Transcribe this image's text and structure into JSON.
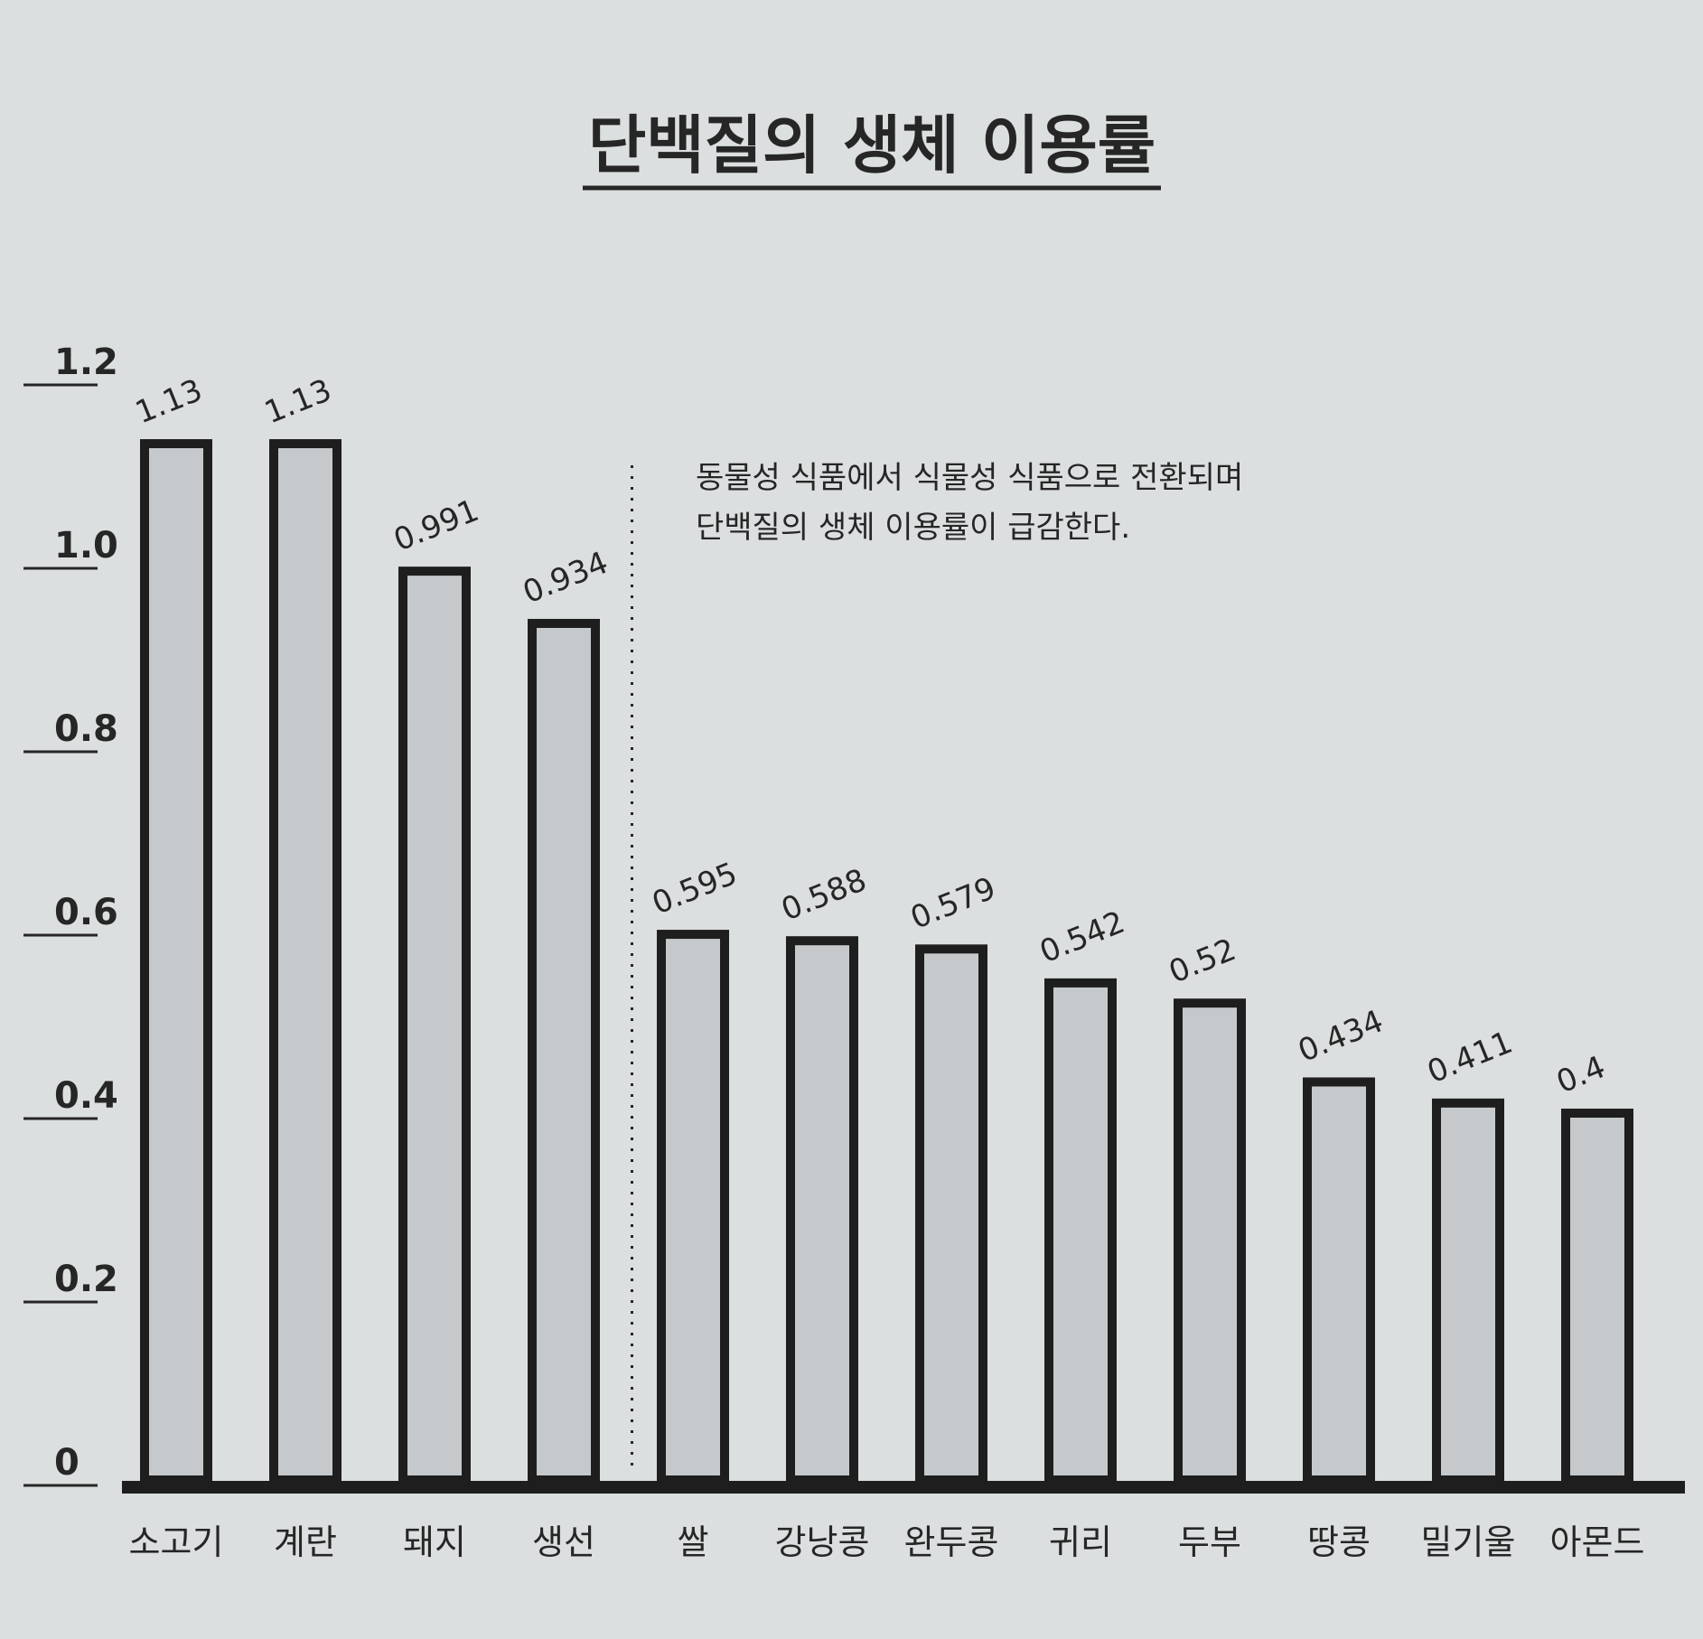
{
  "chart_data": {
    "type": "bar",
    "title": "단백질의 생체 이용률",
    "xlabel": "",
    "ylabel": "",
    "categories": [
      "소고기",
      "계란",
      "돼지",
      "생선",
      "쌀",
      "강낭콩",
      "완두콩",
      "귀리",
      "두부",
      "땅콩",
      "밀기울",
      "아몬드"
    ],
    "values": [
      1.13,
      1.13,
      0.991,
      0.934,
      0.595,
      0.588,
      0.579,
      0.542,
      0.52,
      0.434,
      0.411,
      0.4
    ],
    "value_labels": [
      "1.13",
      "1.13",
      "0.991",
      "0.934",
      "0.595",
      "0.588",
      "0.579",
      "0.542",
      "0.52",
      "0.434",
      "0.411",
      "0.4"
    ],
    "ylim": [
      0,
      1.2
    ],
    "yticks": [
      0,
      0.2,
      0.4,
      0.6,
      0.8,
      1.0,
      1.2
    ],
    "ytick_labels": [
      "0",
      "0.2",
      "0.4",
      "0.6",
      "0.8",
      "1.0",
      "1.2"
    ],
    "grid": false,
    "annotation": {
      "divider_after_index": 3,
      "lines": [
        "동물성 식품에서 식물성 식품으로 전환되며",
        "단백질의 생체 이용률이 급감한다."
      ]
    },
    "colors": {
      "background": "#dcdfe0",
      "bar_fill": "#c6c9cb",
      "bar_stroke": "#1e1e1e",
      "text": "#262626"
    }
  }
}
